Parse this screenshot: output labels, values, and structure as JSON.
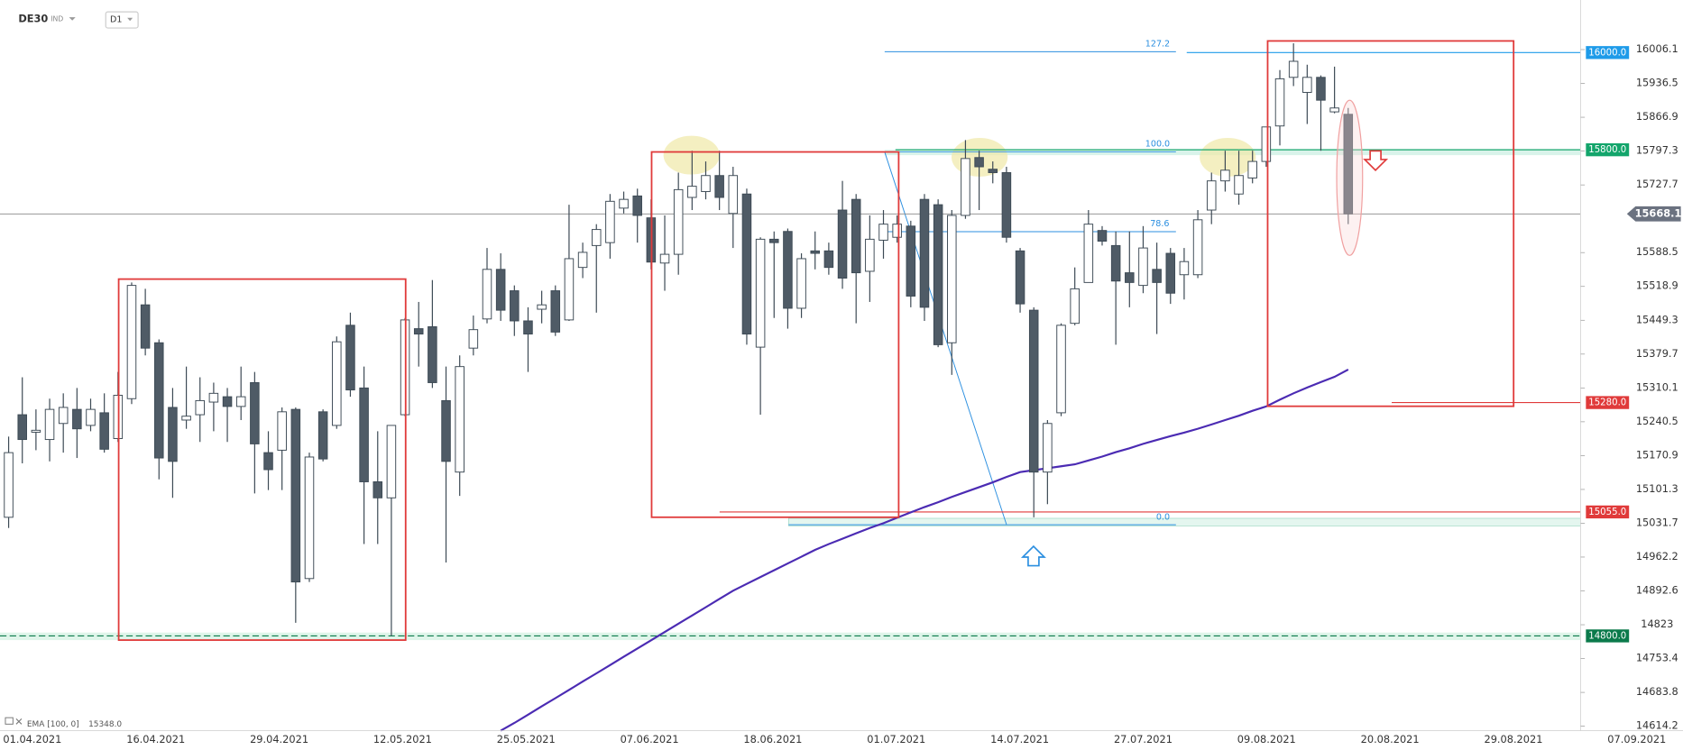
{
  "header": {
    "symbol": "DE30",
    "market": "IND",
    "interval": "D1"
  },
  "chart_data": {
    "type": "candlestick",
    "ylim": [
      14605.2,
      16108.1
    ],
    "yticks": [
      16006.1,
      15936.5,
      15866.9,
      15797.3,
      15727.7,
      15588.5,
      15518.9,
      15449.3,
      15379.7,
      15310.1,
      15240.5,
      15170.9,
      15101.3,
      15031.7,
      14962.2,
      14892.6,
      14823.0,
      14753.4,
      14683.8,
      14614.2
    ],
    "xlabels": [
      "01.04.2021",
      "16.04.2021",
      "29.04.2021",
      "12.05.2021",
      "25.05.2021",
      "07.06.2021",
      "18.06.2021",
      "01.07.2021",
      "14.07.2021",
      "27.07.2021",
      "09.08.2021",
      "20.08.2021",
      "29.08.2021",
      "07.09.2021"
    ],
    "up_color": "#ffffff",
    "down_color": "#4f5b66",
    "candles": [
      [
        15044,
        15210,
        15022,
        15177
      ],
      [
        15255,
        15332,
        15155,
        15204
      ],
      [
        15219,
        15266,
        15182,
        15223
      ],
      [
        15204,
        15288,
        15159,
        15266
      ],
      [
        15237,
        15299,
        15177,
        15270
      ],
      [
        15266,
        15310,
        15166,
        15226
      ],
      [
        15233,
        15288,
        15221,
        15266
      ],
      [
        15259,
        15299,
        15177,
        15184
      ],
      [
        15206,
        15343,
        15199,
        15295
      ],
      [
        15288,
        15527,
        15277,
        15521
      ],
      [
        15481,
        15514,
        15377,
        15392
      ],
      [
        15403,
        15410,
        15122,
        15166
      ],
      [
        15270,
        15310,
        15084,
        15159
      ],
      [
        15244,
        15354,
        15226,
        15252
      ],
      [
        15255,
        15332,
        15199,
        15284
      ],
      [
        15281,
        15321,
        15221,
        15299
      ],
      [
        15292,
        15310,
        15199,
        15272
      ],
      [
        15272,
        15354,
        15244,
        15292
      ],
      [
        15321,
        15343,
        15093,
        15195
      ],
      [
        15177,
        15221,
        15100,
        15142
      ],
      [
        15182,
        15270,
        15100,
        15261
      ],
      [
        15266,
        15270,
        14827,
        14911
      ],
      [
        14918,
        15177,
        14911,
        15168
      ],
      [
        15261,
        15266,
        15159,
        15164
      ],
      [
        15233,
        15416,
        15226,
        15405
      ],
      [
        15439,
        15465,
        15292,
        15306
      ],
      [
        15310,
        15354,
        14989,
        15117
      ],
      [
        15117,
        15221,
        14989,
        15084
      ],
      [
        15084,
        15233,
        14800,
        15233
      ],
      [
        15255,
        15454,
        15252,
        15450
      ],
      [
        15432,
        15487,
        15354,
        15421
      ],
      [
        15436,
        15532,
        15310,
        15321
      ],
      [
        15284,
        15354,
        14951,
        15159
      ],
      [
        15137,
        15377,
        15088,
        15354
      ],
      [
        15392,
        15459,
        15377,
        15430
      ],
      [
        15452,
        15598,
        15443,
        15554
      ],
      [
        15554,
        15587,
        15448,
        15470
      ],
      [
        15510,
        15521,
        15417,
        15448
      ],
      [
        15448,
        15476,
        15343,
        15421
      ],
      [
        15472,
        15510,
        15443,
        15481
      ],
      [
        15510,
        15521,
        15417,
        15425
      ],
      [
        15450,
        15687,
        15448,
        15576
      ],
      [
        15558,
        15609,
        15536,
        15589
      ],
      [
        15603,
        15647,
        15465,
        15636
      ],
      [
        15609,
        15709,
        15576,
        15694
      ],
      [
        15680,
        15714,
        15669,
        15698
      ],
      [
        15705,
        15720,
        15609,
        15665
      ],
      [
        15660,
        15698,
        15554,
        15569
      ],
      [
        15567,
        15665,
        15510,
        15585
      ],
      [
        15585,
        15753,
        15543,
        15718
      ],
      [
        15702,
        15798,
        15676,
        15725
      ],
      [
        15714,
        15776,
        15698,
        15747
      ],
      [
        15747,
        15798,
        15676,
        15702
      ],
      [
        15669,
        15765,
        15598,
        15747
      ],
      [
        15709,
        15720,
        15399,
        15421
      ],
      [
        15394,
        15620,
        15255,
        15616
      ],
      [
        15616,
        15632,
        15454,
        15609
      ],
      [
        15632,
        15638,
        15432,
        15474
      ],
      [
        15474,
        15587,
        15454,
        15576
      ],
      [
        15592,
        15632,
        15554,
        15587
      ],
      [
        15592,
        15609,
        15543,
        15558
      ],
      [
        15676,
        15736,
        15514,
        15536
      ],
      [
        15698,
        15709,
        15443,
        15547
      ],
      [
        15550,
        15665,
        15487,
        15616
      ],
      [
        15614,
        15676,
        15576,
        15647
      ],
      [
        15620,
        15665,
        15609,
        15647
      ],
      [
        15643,
        15654,
        15476,
        15499
      ],
      [
        15698,
        15709,
        15448,
        15476
      ],
      [
        15687,
        15698,
        15394,
        15399
      ],
      [
        15403,
        15676,
        15337,
        15665
      ],
      [
        15665,
        15820,
        15658,
        15782
      ],
      [
        15784,
        15798,
        15676,
        15765
      ],
      [
        15760,
        15776,
        15731,
        15753
      ],
      [
        15753,
        15765,
        15609,
        15620
      ],
      [
        15592,
        15598,
        15465,
        15483
      ],
      [
        15470,
        15476,
        15044,
        15137
      ],
      [
        15137,
        15244,
        15071,
        15237
      ],
      [
        15259,
        15443,
        15252,
        15439
      ],
      [
        15443,
        15558,
        15439,
        15514
      ],
      [
        15527,
        15676,
        15527,
        15647
      ],
      [
        15634,
        15643,
        15603,
        15612
      ],
      [
        15603,
        15632,
        15399,
        15530
      ],
      [
        15547,
        15632,
        15476,
        15527
      ],
      [
        15521,
        15643,
        15505,
        15598
      ],
      [
        15554,
        15609,
        15421,
        15527
      ],
      [
        15587,
        15598,
        15483,
        15505
      ],
      [
        15543,
        15598,
        15492,
        15570
      ],
      [
        15543,
        15676,
        15536,
        15656
      ],
      [
        15676,
        15753,
        15647,
        15736
      ],
      [
        15736,
        15798,
        15714,
        15758
      ],
      [
        15709,
        15798,
        15687,
        15747
      ],
      [
        15742,
        15798,
        15731,
        15776
      ],
      [
        15776,
        15847,
        15765,
        15847
      ],
      [
        15849,
        15964,
        15809,
        15946
      ],
      [
        15949,
        16019,
        15931,
        15982
      ],
      [
        15918,
        15975,
        15853,
        15949
      ],
      [
        15949,
        15953,
        15798,
        15902
      ],
      [
        15878,
        15971,
        15875,
        15886
      ],
      [
        15873,
        15886,
        15647,
        15668.1
      ]
    ],
    "ema": {
      "name": "EMA [100, 0]",
      "color": "#4b2bb3",
      "last_label": "15348.0",
      "values": [
        null,
        null,
        null,
        null,
        null,
        null,
        null,
        null,
        null,
        null,
        null,
        null,
        null,
        null,
        null,
        null,
        null,
        null,
        null,
        null,
        null,
        null,
        null,
        null,
        null,
        null,
        null,
        null,
        null,
        null,
        null,
        null,
        null,
        null,
        null,
        null,
        14605,
        14621,
        14638,
        14655,
        14672,
        14689,
        14706,
        14723,
        14740,
        14757,
        14774,
        14791,
        14808,
        14825,
        14842,
        14859,
        14876,
        14893,
        14907,
        14921,
        14935,
        14949,
        14963,
        14977,
        14989,
        15000,
        15011,
        15022,
        15032,
        15043,
        15054,
        15065,
        15075,
        15086,
        15096,
        15106,
        15116,
        15127,
        15137,
        15141,
        15145,
        15149,
        15153,
        15161,
        15169,
        15178,
        15186,
        15195,
        15203,
        15211,
        15218,
        15226,
        15235,
        15244,
        15253,
        15263,
        15272,
        15286,
        15299,
        15311,
        15322,
        15333,
        15348
      ]
    },
    "last": 15668.1,
    "last_color": "#6b7280",
    "levels": [
      {
        "value": 16000,
        "label": "16000.0",
        "color": "#1e9be9"
      },
      {
        "value": 15800,
        "label": "15800.0",
        "color": "#13a56b"
      },
      {
        "value": 15280,
        "label": "15280.0",
        "color": "#e03a3a"
      },
      {
        "value": 15055,
        "label": "15055.0",
        "color": "#e03a3a"
      },
      {
        "value": 14800,
        "label": "14800.0",
        "color": "#0b7a4b"
      }
    ],
    "fib_labels": [
      "127.2",
      "100.0",
      "78.6",
      "0.0"
    ]
  }
}
